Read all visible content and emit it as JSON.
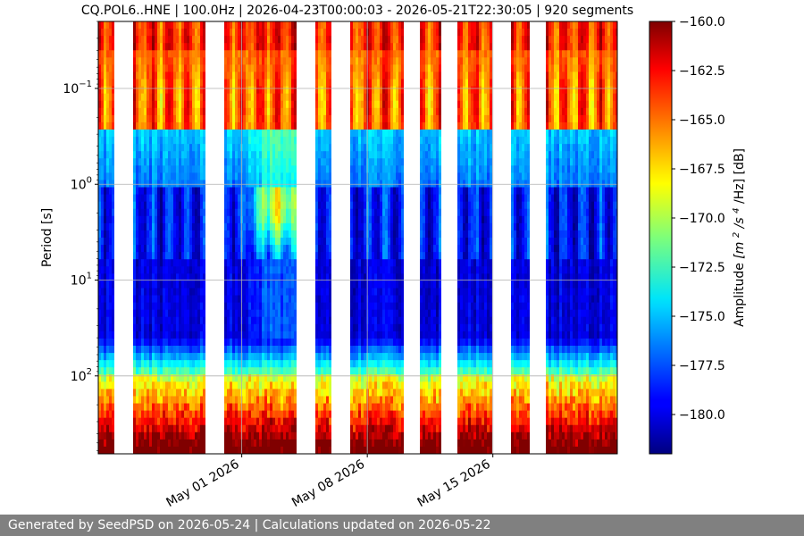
{
  "chart_data": {
    "type": "heatmap",
    "title": "CQ.POL6..HNE | 100.0Hz | 2026-04-23T00:00:03 - 2026-05-21T22:30:05 | 920 segments",
    "ylabel": "Period [s]",
    "y_scale": "log",
    "y_inverted": true,
    "ylim": [
      0.02,
      650
    ],
    "y_ticks": [
      {
        "value": 0.1,
        "base": "10",
        "exp": "−1"
      },
      {
        "value": 1,
        "base": "10",
        "exp": "0"
      },
      {
        "value": 10,
        "base": "10",
        "exp": "1"
      },
      {
        "value": 100,
        "base": "10",
        "exp": "2"
      }
    ],
    "xlim": [
      "2026-04-23T00:00:03",
      "2026-05-21T22:30:05"
    ],
    "x_ticks": [
      {
        "date": "2026-05-01",
        "label": "May 01 2026"
      },
      {
        "date": "2026-05-08",
        "label": "May 08 2026"
      },
      {
        "date": "2026-05-15",
        "label": "May 15 2026"
      }
    ],
    "grid": true,
    "data_gaps": [
      [
        "2026-04-23T20:00",
        "2026-04-25T00:00"
      ],
      [
        "2026-04-29T00:00",
        "2026-04-30T01:00"
      ],
      [
        "2026-05-04T00:00",
        "2026-05-05T01:00"
      ],
      [
        "2026-05-06T00:00",
        "2026-05-07T00:00"
      ],
      [
        "2026-05-10T00:00",
        "2026-05-11T00:00"
      ],
      [
        "2026-05-12T02:00",
        "2026-05-13T00:00"
      ],
      [
        "2026-05-15T00:00",
        "2026-05-16T01:00"
      ],
      [
        "2026-05-17T02:00",
        "2026-05-18T00:00"
      ],
      [
        "2026-05-20T00:00",
        "2026-05-20T02:00"
      ]
    ],
    "colormap": "jet",
    "colorbar": {
      "label": "Amplitude",
      "unit_math": [
        "[m",
        "2",
        "/s",
        "4",
        "/Hz] [dB]"
      ],
      "vmin": -182,
      "vmax": -160,
      "ticks": [
        "−160.0",
        "−162.5",
        "−165.0",
        "−167.5",
        "−170.0",
        "−172.5",
        "−175.0",
        "−177.5",
        "−180.0"
      ],
      "tick_values": [
        -160,
        -162.5,
        -165,
        -167.5,
        -170,
        -172.5,
        -175,
        -177.5,
        -180
      ]
    }
  },
  "footer": {
    "text": "Generated by SeedPSD on 2026-05-24 | Calculations updated on 2026-05-22"
  }
}
